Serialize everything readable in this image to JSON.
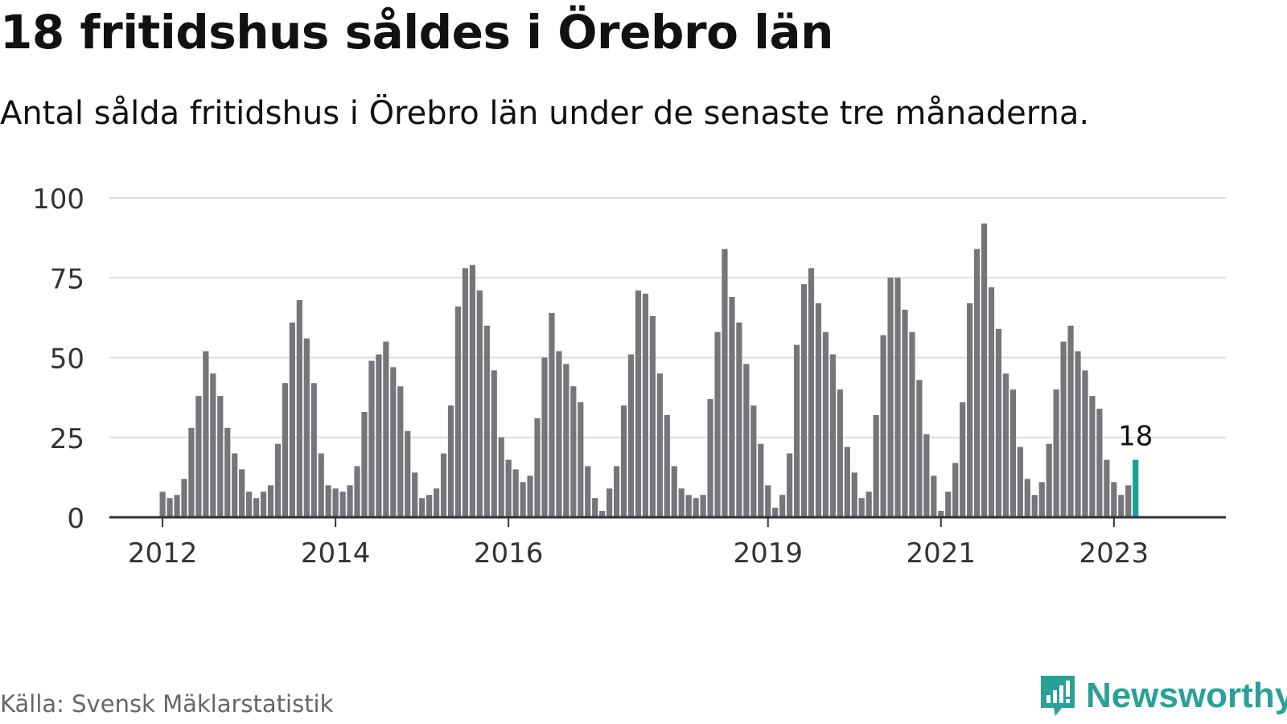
{
  "title": "18 fritidshus såldes i Örebro län",
  "subtitle": "Antal sålda fritidshus i Örebro län under de senaste tre månaderna.",
  "source": "Källa: Svensk Mäklarstatistik",
  "brand": {
    "name": "Newsworthy",
    "icon": "newsworthy-logo-icon",
    "color": "#2aa198"
  },
  "colors": {
    "bar": "#75757a",
    "highlight": "#16a394",
    "grid": "#dddddd",
    "axis": "#333333"
  },
  "chart_data": {
    "type": "bar",
    "title": "18 fritidshus såldes i Örebro län",
    "ylim": [
      0,
      100
    ],
    "yticks": [
      0,
      25,
      50,
      75,
      100
    ],
    "grid": true,
    "xticks": [
      {
        "label": "2012",
        "index": 0
      },
      {
        "label": "2014",
        "index": 24
      },
      {
        "label": "2016",
        "index": 48
      },
      {
        "label": "2019",
        "index": 84
      },
      {
        "label": "2021",
        "index": 108
      },
      {
        "label": "2023",
        "index": 132
      }
    ],
    "values": [
      8,
      6,
      7,
      12,
      28,
      38,
      52,
      45,
      38,
      28,
      20,
      15,
      8,
      6,
      8,
      10,
      23,
      42,
      61,
      68,
      56,
      42,
      20,
      10,
      9,
      8,
      10,
      16,
      33,
      49,
      51,
      55,
      47,
      41,
      27,
      14,
      6,
      7,
      9,
      20,
      35,
      66,
      78,
      79,
      71,
      60,
      46,
      25,
      18,
      15,
      11,
      13,
      31,
      50,
      64,
      52,
      48,
      41,
      36,
      16,
      6,
      2,
      9,
      16,
      35,
      51,
      71,
      70,
      63,
      45,
      32,
      16,
      9,
      7,
      6,
      7,
      37,
      58,
      84,
      69,
      61,
      48,
      35,
      23,
      10,
      3,
      7,
      20,
      54,
      73,
      78,
      67,
      58,
      51,
      40,
      22,
      14,
      6,
      8,
      32,
      57,
      75,
      75,
      65,
      58,
      43,
      26,
      13,
      2,
      8,
      17,
      36,
      67,
      84,
      92,
      72,
      59,
      45,
      40,
      22,
      12,
      7,
      11,
      23,
      40,
      55,
      60,
      52,
      46,
      38,
      34,
      18,
      11,
      7,
      10,
      18
    ],
    "highlight": {
      "index": 135,
      "value": 18,
      "label": "18"
    }
  }
}
